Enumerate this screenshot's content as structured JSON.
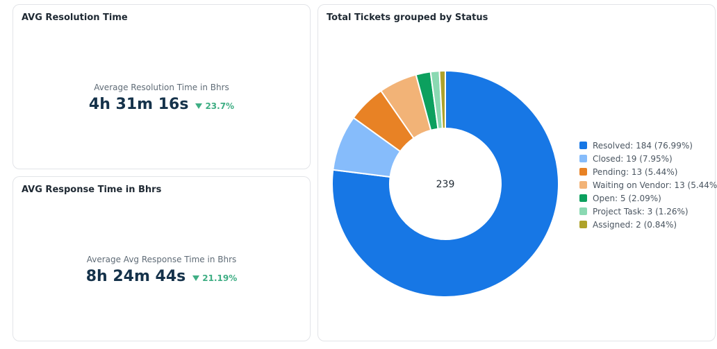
{
  "resolution_card": {
    "title": "AVG Resolution Time",
    "caption": "Average Resolution Time in Bhrs",
    "value": "4h 31m 16s",
    "delta": "23.7%",
    "delta_direction": "down",
    "delta_color": "#3fae84"
  },
  "response_card": {
    "title": "AVG Response Time in Bhrs",
    "caption": "Average Avg Response Time in Bhrs",
    "value": "8h 24m 44s",
    "delta": "21.19%",
    "delta_direction": "down",
    "delta_color": "#3fae84"
  },
  "status_card": {
    "title": "Total Tickets grouped by Status"
  },
  "chart_data": {
    "type": "pie",
    "variant": "donut",
    "title": "Total Tickets grouped by Status",
    "center_label": "239",
    "total": 239,
    "legend_position": "right",
    "slices": [
      {
        "name": "Resolved",
        "value": 184,
        "percent": 76.99,
        "color": "#1777e5",
        "legend": "Resolved: 184 (76.99%)"
      },
      {
        "name": "Closed",
        "value": 19,
        "percent": 7.95,
        "color": "#86bcfb",
        "legend": "Closed: 19 (7.95%)"
      },
      {
        "name": "Pending",
        "value": 13,
        "percent": 5.44,
        "color": "#e88225",
        "legend": "Pending: 13 (5.44%)"
      },
      {
        "name": "Waiting on Vendor",
        "value": 13,
        "percent": 5.44,
        "color": "#f2b377",
        "legend": "Waiting on Vendor: 13 (5.44%)"
      },
      {
        "name": "Open",
        "value": 5,
        "percent": 2.09,
        "color": "#0ca05e",
        "legend": "Open: 5 (2.09%)"
      },
      {
        "name": "Project Task",
        "value": 3,
        "percent": 1.26,
        "color": "#8ad9b2",
        "legend": "Project Task: 3 (1.26%)"
      },
      {
        "name": "Assigned",
        "value": 2,
        "percent": 0.84,
        "color": "#aea22a",
        "legend": "Assigned: 2 (0.84%)"
      }
    ]
  }
}
